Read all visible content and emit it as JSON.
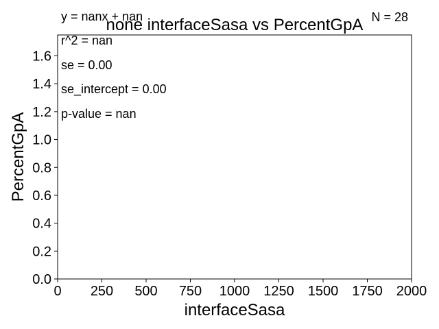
{
  "chart_data": {
    "type": "scatter",
    "title": "none interfaceSasa vs PercentGpA",
    "xlabel": "interfaceSasa",
    "ylabel": "PercentGpA",
    "xlim": [
      0,
      2000
    ],
    "ylim": [
      0,
      1.75
    ],
    "xticks": [
      0,
      250,
      500,
      750,
      1000,
      1250,
      1500,
      1750,
      2000
    ],
    "yticks": [
      0.0,
      0.2,
      0.4,
      0.6,
      0.8,
      1.0,
      1.2,
      1.4,
      1.6
    ],
    "xtick_labels": [
      "0",
      "250",
      "500",
      "750",
      "1000",
      "1250",
      "1500",
      "1750",
      "2000"
    ],
    "ytick_labels": [
      "0.0",
      "0.2",
      "0.4",
      "0.6",
      "0.8",
      "1.0",
      "1.2",
      "1.4",
      "1.6"
    ],
    "points": [],
    "grid": false,
    "annotations": {
      "equation": "y = nanx + nan",
      "n": "N = 28",
      "r2": "r^2 = nan",
      "se": "se = 0.00",
      "se_intercept": "se_intercept = 0.00",
      "p_value": "p-value = nan"
    }
  }
}
